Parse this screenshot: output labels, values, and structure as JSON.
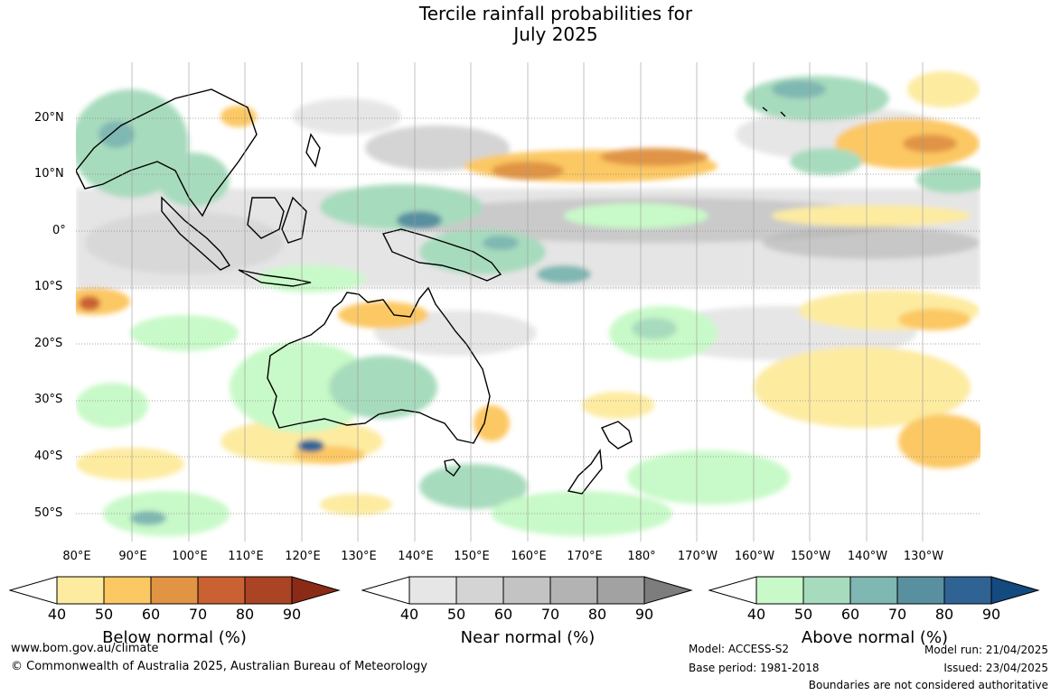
{
  "title_line1": "Tercile rainfall probabilities for",
  "title_line2": "July 2025",
  "lat_labels": [
    "20°N",
    "10°N",
    "0°",
    "10°S",
    "20°S",
    "30°S",
    "40°S",
    "50°S"
  ],
  "lon_labels": [
    "80°E",
    "90°E",
    "100°E",
    "110°E",
    "120°E",
    "130°E",
    "140°E",
    "150°E",
    "160°E",
    "170°E",
    "180°",
    "170°W",
    "160°W",
    "150°W",
    "140°W",
    "130°W"
  ],
  "legend": {
    "below": {
      "title": "Below normal (%)",
      "ticks": [
        "40",
        "50",
        "60",
        "70",
        "80",
        "90"
      ],
      "colors": [
        "#fdeba0",
        "#fcc863",
        "#e09444",
        "#c96133",
        "#ab4424",
        "#8b2a17"
      ]
    },
    "near": {
      "title": "Near normal (%)",
      "ticks": [
        "40",
        "50",
        "60",
        "70",
        "80",
        "90"
      ],
      "colors": [
        "#e6e6e6",
        "#d4d4d4",
        "#c3c3c3",
        "#b3b3b3",
        "#a2a2a2",
        "#7d7d7d"
      ]
    },
    "above": {
      "title": "Above normal (%)",
      "ticks": [
        "40",
        "50",
        "60",
        "70",
        "80",
        "90"
      ],
      "colors": [
        "#c8f9c8",
        "#a7dbbd",
        "#7fb7b2",
        "#5990a0",
        "#2f6394",
        "#134a7f"
      ]
    }
  },
  "footer": {
    "url": "www.bom.gov.au/climate",
    "copyright": "© Commonwealth of Australia 2025, Australian Bureau of Meteorology",
    "model": "Model: ACCESS-S2",
    "base_period": "Base period: 1981-2018",
    "model_run": "Model run: 21/04/2025",
    "issued": "Issued: 23/04/2025",
    "disclaimer": "Boundaries are not considered authoritative"
  }
}
